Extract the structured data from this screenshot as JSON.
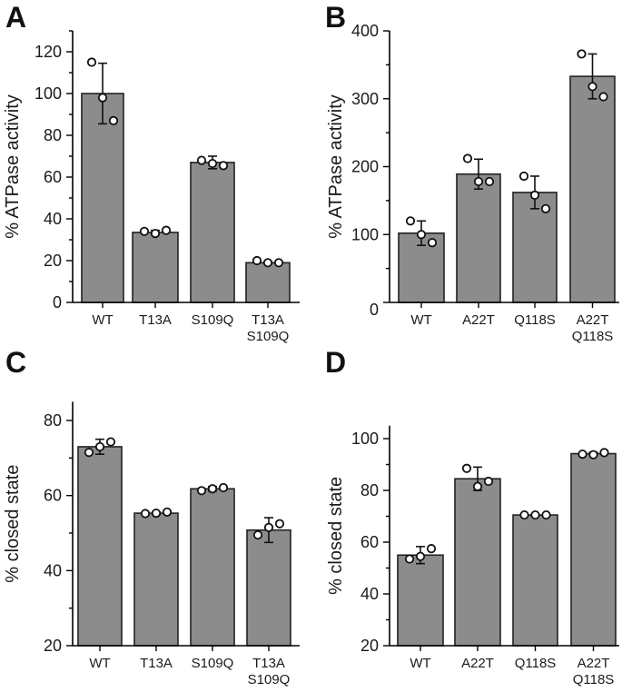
{
  "chart_data": [
    {
      "panel": "A",
      "type": "bar",
      "ylabel": "% ATPase activity",
      "ylim": [
        0,
        130
      ],
      "yticks": [
        0,
        20,
        40,
        60,
        80,
        100,
        120
      ],
      "categories": [
        [
          "WT"
        ],
        [
          "T13A"
        ],
        [
          "S109Q"
        ],
        [
          "T13A",
          "S109Q"
        ]
      ],
      "values": [
        100,
        33.5,
        67,
        19
      ],
      "errors": [
        14.5,
        1,
        3,
        0.5
      ],
      "points": [
        [
          115,
          98,
          87
        ],
        [
          34,
          33,
          34.5
        ],
        [
          68,
          66.5,
          65.5
        ],
        [
          20,
          19,
          19
        ]
      ],
      "bar_color": "#8c8c8c"
    },
    {
      "panel": "B",
      "type": "bar",
      "ylabel": "% ATPase activity",
      "ylim": [
        0,
        400
      ],
      "yticks": [
        0,
        100,
        200,
        300,
        400
      ],
      "categories": [
        [
          "WT"
        ],
        [
          "A22T"
        ],
        [
          "Q118S"
        ],
        [
          "A22T",
          "Q118S"
        ]
      ],
      "values": [
        102,
        189,
        162,
        333
      ],
      "errors": [
        18,
        22,
        24,
        33
      ],
      "points": [
        [
          120,
          100,
          88
        ],
        [
          212,
          178,
          178
        ],
        [
          186,
          158,
          138
        ],
        [
          366,
          318,
          303
        ]
      ],
      "bar_color": "#8c8c8c"
    },
    {
      "panel": "C",
      "type": "bar",
      "ylabel": "% closed state",
      "ylim": [
        20,
        85
      ],
      "yticks": [
        20,
        40,
        60,
        80
      ],
      "categories": [
        [
          "WT"
        ],
        [
          "T13A"
        ],
        [
          "S109Q"
        ],
        [
          "T13A",
          "S109Q"
        ]
      ],
      "values": [
        73,
        55.3,
        61.8,
        50.8
      ],
      "errors": [
        2,
        0.3,
        0.6,
        3.3
      ],
      "points": [
        [
          71.5,
          73,
          74.3
        ],
        [
          55.2,
          55.3,
          55.6
        ],
        [
          61.3,
          61.8,
          62.1
        ],
        [
          49.5,
          51.5,
          52.5
        ]
      ],
      "bar_color": "#8c8c8c"
    },
    {
      "panel": "D",
      "type": "bar",
      "ylabel": "% closed state",
      "ylim": [
        20,
        105
      ],
      "yticks": [
        20,
        40,
        60,
        80,
        100
      ],
      "categories": [
        [
          "WT"
        ],
        [
          "A22T"
        ],
        [
          "Q118S"
        ],
        [
          "A22T",
          "Q118S"
        ]
      ],
      "values": [
        55,
        84.5,
        70.5,
        94.2
      ],
      "errors": [
        3.3,
        4.5,
        0.3,
        0.5
      ],
      "points": [
        [
          53.5,
          54.5,
          57.5
        ],
        [
          88.5,
          81.5,
          83.5
        ],
        [
          70.5,
          70.5,
          70.5
        ],
        [
          94,
          93.8,
          94.6
        ]
      ],
      "bar_color": "#8c8c8c"
    }
  ]
}
